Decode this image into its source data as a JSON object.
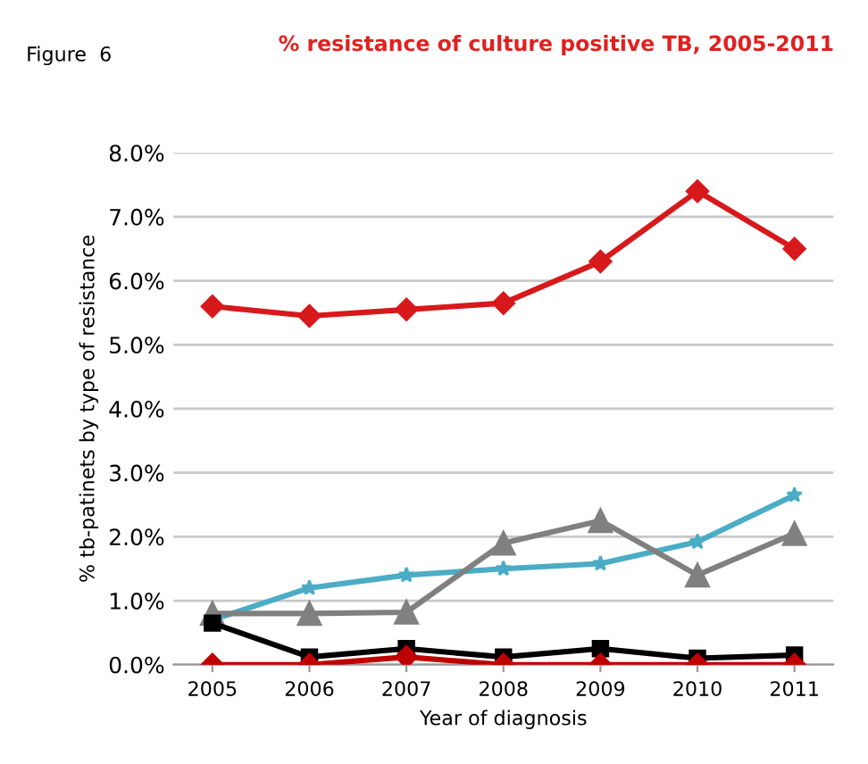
{
  "chart_data": {
    "type": "line",
    "title": "% resistance of culture positive TB, 2005-2011",
    "xlabel": "Year of diagnosis",
    "ylabel": "% tb-patinets by type of resistance",
    "annotations": [
      "Figure  6"
    ],
    "categories": [
      "2005",
      "2006",
      "2007",
      "2008",
      "2009",
      "2010",
      "2011"
    ],
    "ylim": [
      0,
      8
    ],
    "yticks": [
      {
        "value": 0,
        "label": "0.0%"
      },
      {
        "value": 1,
        "label": "1.0%"
      },
      {
        "value": 2,
        "label": "2.0%"
      },
      {
        "value": 3,
        "label": "3.0%"
      },
      {
        "value": 4,
        "label": "4.0%"
      },
      {
        "value": 5,
        "label": "5.0%"
      },
      {
        "value": 6,
        "label": "6.0%"
      },
      {
        "value": 7,
        "label": "7.0%"
      },
      {
        "value": 8,
        "label": "8.0%"
      }
    ],
    "grid": "y",
    "legend": false,
    "series": [
      {
        "color": "#d7191c",
        "marker": "diamond",
        "values": [
          5.6,
          5.45,
          5.55,
          5.65,
          6.3,
          7.4,
          6.5
        ]
      },
      {
        "color": "#4bacc6",
        "marker": "star",
        "values": [
          0.7,
          1.2,
          1.4,
          1.5,
          1.58,
          1.92,
          2.65
        ]
      },
      {
        "color": "#808080",
        "marker": "triangle",
        "values": [
          0.8,
          0.8,
          0.82,
          1.9,
          2.25,
          1.4,
          2.05
        ]
      },
      {
        "color": "#000000",
        "marker": "square",
        "values": [
          0.65,
          0.12,
          0.25,
          0.12,
          0.25,
          0.1,
          0.15
        ]
      },
      {
        "color": "#c00000",
        "marker": "diamond",
        "values": [
          0,
          0,
          0.12,
          0,
          0,
          0,
          0
        ]
      }
    ]
  }
}
